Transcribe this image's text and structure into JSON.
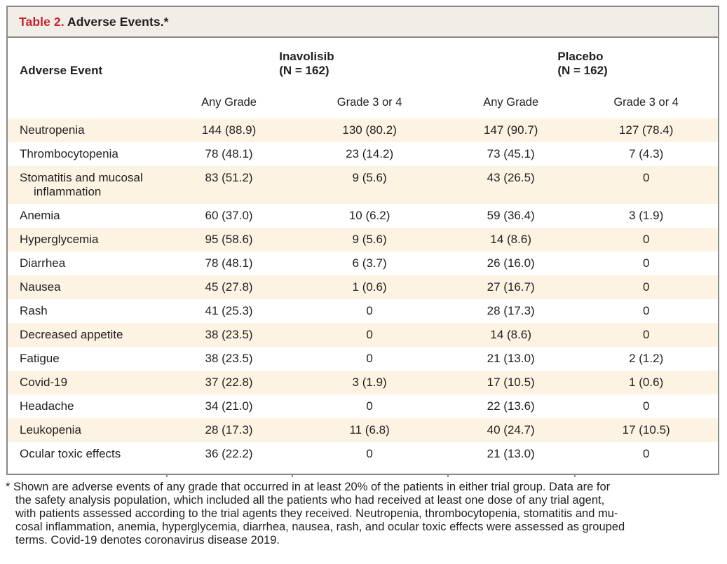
{
  "title": {
    "label": "Table 2.",
    "text": "Adverse Events.*"
  },
  "table": {
    "event_column_header": "Adverse Event",
    "groups": [
      {
        "name": "Inavolisib",
        "n": "(N = 162)"
      },
      {
        "name": "Placebo",
        "n": "(N = 162)"
      }
    ],
    "subheaders": [
      "Any Grade",
      "Grade 3 or 4",
      "Any Grade",
      "Grade 3 or 4"
    ],
    "rows": [
      {
        "event": "Neutropenia",
        "values": [
          "144 (88.9)",
          "130 (80.2)",
          "147 (90.7)",
          "127 (78.4)"
        ]
      },
      {
        "event": "Thrombocytopenia",
        "values": [
          "78 (48.1)",
          "23 (14.2)",
          "73 (45.1)",
          "7 (4.3)"
        ]
      },
      {
        "event": "Stomatitis and mucosal inflammation",
        "values": [
          "83 (51.2)",
          "9 (5.6)",
          "43 (26.5)",
          "0"
        ]
      },
      {
        "event": "Anemia",
        "values": [
          "60 (37.0)",
          "10 (6.2)",
          "59 (36.4)",
          "3 (1.9)"
        ]
      },
      {
        "event": "Hyperglycemia",
        "values": [
          "95 (58.6)",
          "9 (5.6)",
          "14 (8.6)",
          "0"
        ]
      },
      {
        "event": "Diarrhea",
        "values": [
          "78 (48.1)",
          "6 (3.7)",
          "26 (16.0)",
          "0"
        ]
      },
      {
        "event": "Nausea",
        "values": [
          "45 (27.8)",
          "1 (0.6)",
          "27 (16.7)",
          "0"
        ]
      },
      {
        "event": "Rash",
        "values": [
          "41 (25.3)",
          "0",
          "28 (17.3)",
          "0"
        ]
      },
      {
        "event": "Decreased appetite",
        "values": [
          "38 (23.5)",
          "0",
          "14 (8.6)",
          "0"
        ]
      },
      {
        "event": "Fatigue",
        "values": [
          "38 (23.5)",
          "0",
          "21 (13.0)",
          "2 (1.2)"
        ]
      },
      {
        "event": "Covid-19",
        "values": [
          "37 (22.8)",
          "3 (1.9)",
          "17 (10.5)",
          "1 (0.6)"
        ]
      },
      {
        "event": "Headache",
        "values": [
          "34 (21.0)",
          "0",
          "22 (13.6)",
          "0"
        ]
      },
      {
        "event": "Leukopenia",
        "values": [
          "28 (17.3)",
          "11 (6.8)",
          "40 (24.7)",
          "17 (10.5)"
        ]
      },
      {
        "event": "Ocular toxic effects",
        "values": [
          "36 (22.2)",
          "0",
          "21 (13.0)",
          "0"
        ]
      }
    ]
  },
  "footnote": {
    "lines": [
      "* Shown are adverse events of any grade that occurred in at least 20% of the patients in either trial group. Data are for",
      "the safety analysis population, which included all the patients who had received at least one dose of any trial agent,",
      "with patients assessed according to the trial agents they received. Neutropenia, thrombocytopenia, stomatitis and mu-",
      "cosal inflammation, anemia, hyperglycemia, diarrhea, nausea, rash, and ocular toxic effects were assessed as grouped",
      "terms. Covid-19 denotes coronavirus disease 2019."
    ]
  },
  "colors": {
    "accent_red": "#c5242f",
    "row_cream": "#fdf3e2",
    "titlebar_bg": "#f1eee7",
    "border_gray": "#8a8a8a",
    "text": "#231f20"
  }
}
